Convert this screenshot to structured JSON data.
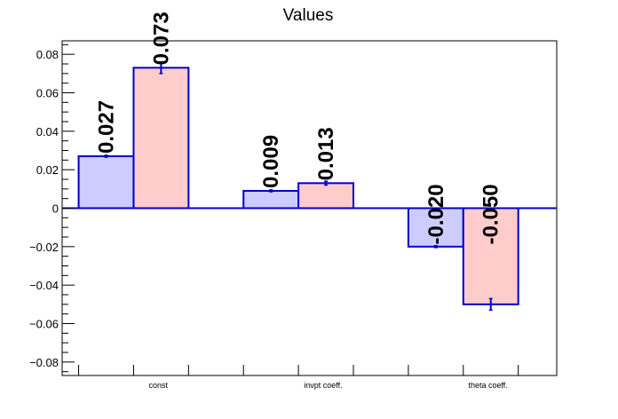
{
  "chart_data": {
    "type": "bar",
    "title": "Values",
    "xlabel": "",
    "ylabel": "",
    "categories": [
      "const",
      "invpt coeff.",
      "theta coeff."
    ],
    "ylim": [
      -0.087,
      0.087
    ],
    "yticks": [
      -0.08,
      -0.06,
      -0.04,
      -0.02,
      0,
      0.02,
      0.04,
      0.06,
      0.08
    ],
    "ytick_labels": [
      "−0.08",
      "−0.06",
      "−0.04",
      "−0.02",
      "0",
      "0.02",
      "0.04",
      "0.06",
      "0.08"
    ],
    "grid": false,
    "legend": "none",
    "series": [
      {
        "values": [
          0.027,
          0.009,
          -0.02
        ],
        "errors": [
          0.0005,
          0.0005,
          0.0005
        ],
        "labels": [
          "0.027",
          "0.009",
          "-0.020"
        ],
        "fill": "#ccccff",
        "stroke": "#0000cc"
      },
      {
        "values": [
          0.073,
          0.013,
          -0.05
        ],
        "errors": [
          0.003,
          0.001,
          0.003
        ],
        "labels": [
          "0.073",
          "0.013",
          "-0.050"
        ],
        "fill": "#ffcccc",
        "stroke": "#0000cc"
      }
    ]
  }
}
